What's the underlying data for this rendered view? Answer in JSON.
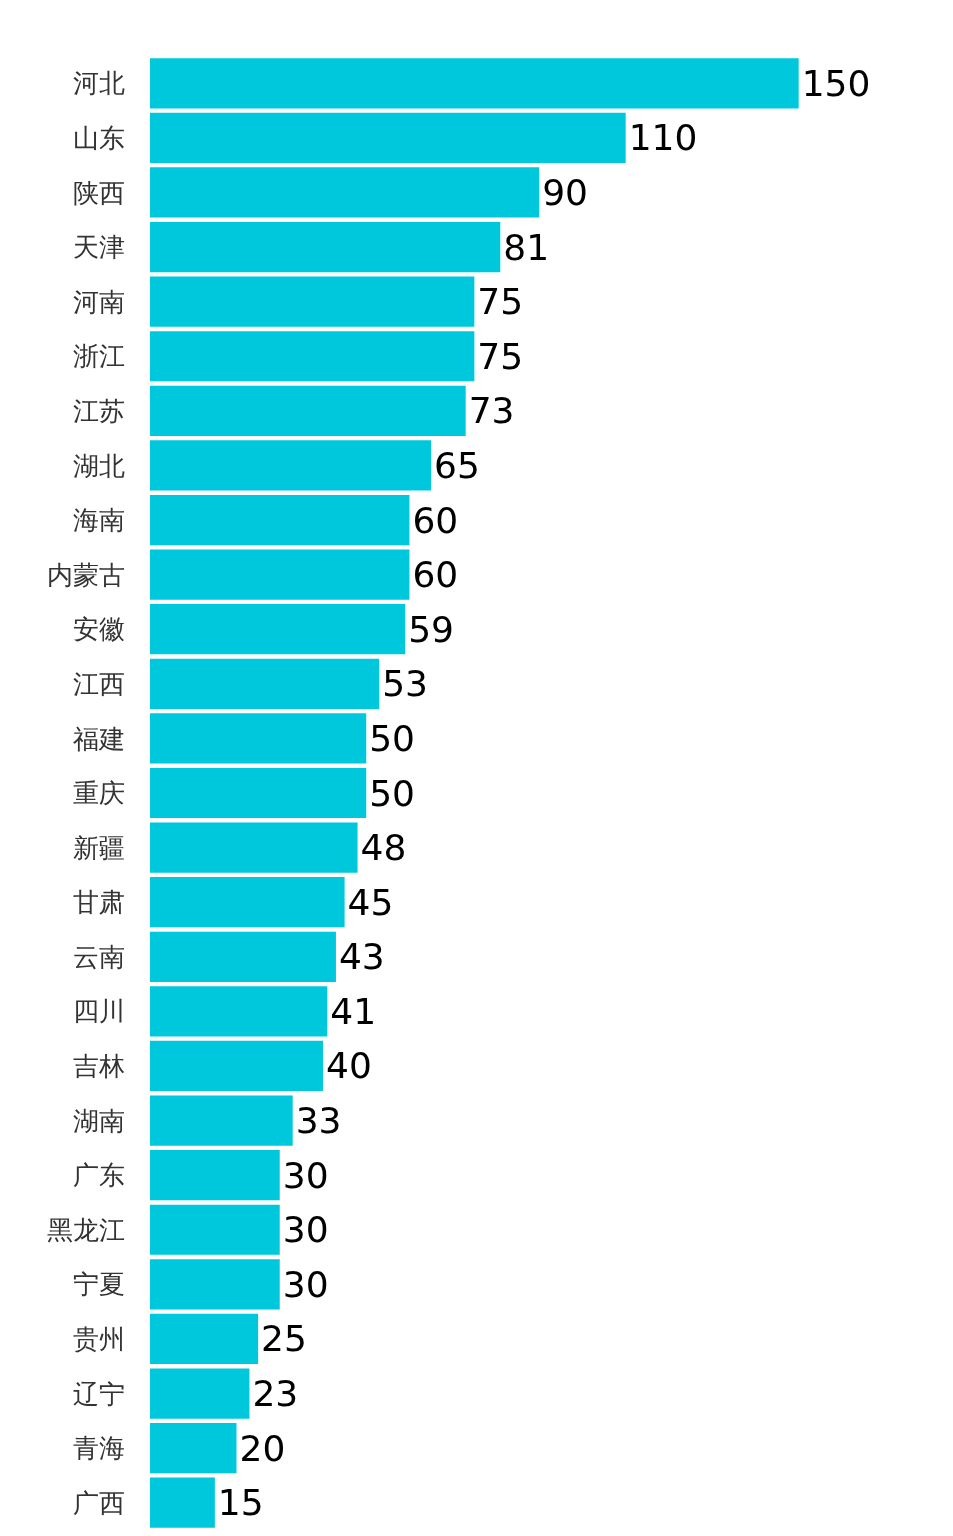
{
  "chart_data": {
    "type": "bar",
    "orientation": "horizontal",
    "data_labels": true,
    "color": "#00c8dc",
    "categories": [
      "河北",
      "山东",
      "陕西",
      "天津",
      "河南",
      "浙江",
      "江苏",
      "湖北",
      "海南",
      "内蒙古",
      "安徽",
      "江西",
      "福建",
      "重庆",
      "新疆",
      "甘肃",
      "云南",
      "四川",
      "吉林",
      "湖南",
      "广东",
      "黑龙江",
      "宁夏",
      "贵州",
      "辽宁",
      "青海",
      "广西"
    ],
    "values": [
      150,
      110,
      90,
      81,
      75,
      75,
      73,
      65,
      60,
      60,
      59,
      53,
      50,
      50,
      48,
      45,
      43,
      41,
      40,
      33,
      30,
      30,
      30,
      25,
      23,
      20,
      15
    ]
  }
}
